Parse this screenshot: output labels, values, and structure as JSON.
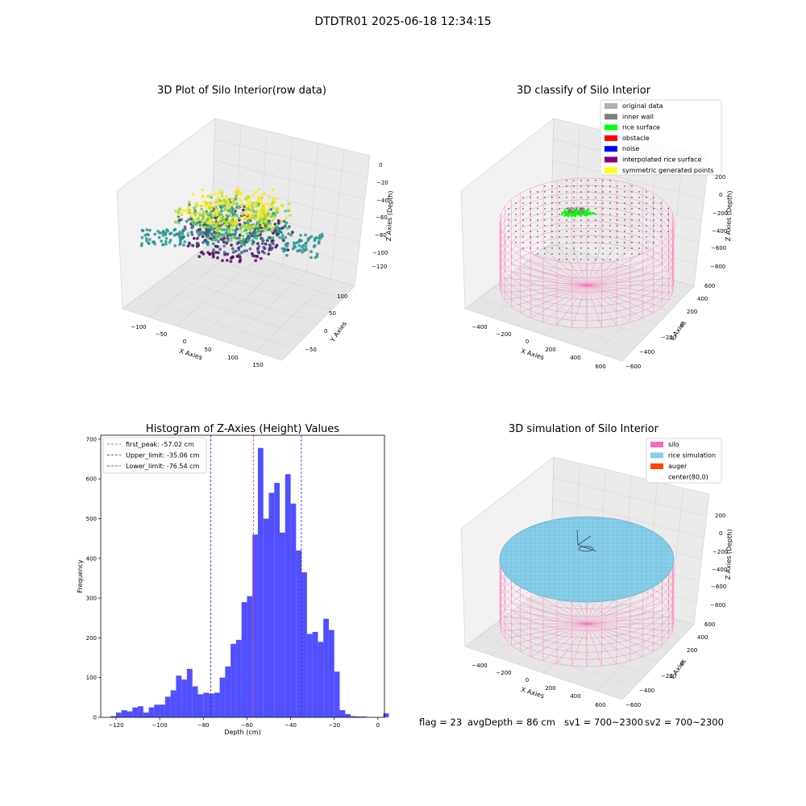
{
  "figure": {
    "suptitle": "DTDTR01 2025-06-18 12:34:15",
    "footer": {
      "flag": "flag = 23",
      "avg_depth": "avgDepth = 86 cm",
      "sv1": "sv1 = 700~2300",
      "sv2": "sv2 = 700~2300"
    }
  },
  "colors": {
    "hist_bar": "#5050ff",
    "peak_line": "#ff3333",
    "limit_line": "#2222dd",
    "silo": "#ff69b4",
    "rice_simulation": "#87ceeb",
    "auger": "#ff4500",
    "rice_surface": "#00ff00",
    "inner_wall": "#808080",
    "original_data": "#b0b0b0",
    "obstacle": "#ff0000",
    "noise": "#0000ff",
    "interpolated": "#800080",
    "symmetric": "#ffff00",
    "viridis": [
      "#440154",
      "#3b528b",
      "#21918c",
      "#5ec962",
      "#bddf26",
      "#fde725"
    ]
  },
  "plot1": {
    "title": "3D Plot of Silo Interior(row data)",
    "xlabel": "X Axies",
    "ylabel": "Y Axies",
    "zlabel": "Z Axies (Depth)",
    "xticks": [
      "−100",
      "−50",
      "0",
      "50",
      "100",
      "150"
    ],
    "yticks": [
      "100",
      "50",
      "0",
      "−50"
    ],
    "zticks": [
      "0",
      "−20",
      "−40",
      "−60",
      "−80",
      "−100",
      "−120"
    ],
    "xlim": [
      -130,
      170
    ],
    "ylim": [
      -80,
      130
    ],
    "zlim": [
      -130,
      5
    ],
    "colormap": "viridis"
  },
  "plot2": {
    "title": "3D classify of Silo Interior",
    "xlabel": "X Axies",
    "ylabel": "Y Axies",
    "zlabel": "Z Axies (Depth)",
    "xticks": [
      "−400",
      "−200",
      "0",
      "200",
      "400",
      "600"
    ],
    "yticks": [
      "600",
      "400",
      "200",
      "0",
      "−200",
      "−400",
      "−600"
    ],
    "zticks": [
      "200",
      "0",
      "−200",
      "−400",
      "−600",
      "−800"
    ],
    "legend": [
      {
        "label": "original data",
        "color": "#b0b0b0"
      },
      {
        "label": "inner wall",
        "color": "#808080"
      },
      {
        "label": "rice surface",
        "color": "#00ff00"
      },
      {
        "label": "obstacle",
        "color": "#ff0000"
      },
      {
        "label": "noise",
        "color": "#0000ff"
      },
      {
        "label": "interpolated rice surface",
        "color": "#800080"
      },
      {
        "label": "symmetric generated points",
        "color": "#ffff00"
      }
    ]
  },
  "plot4": {
    "title": "3D simulation of Silo Interior",
    "xlabel": "X Axies",
    "ylabel": "Y Axies",
    "zlabel": "Z Axies (Depth)",
    "xticks": [
      "−400",
      "−200",
      "0",
      "200",
      "400",
      "600"
    ],
    "yticks": [
      "600",
      "400",
      "200",
      "0",
      "−200",
      "−400",
      "−600"
    ],
    "zticks": [
      "200",
      "0",
      "−200",
      "−400",
      "−600",
      "−800"
    ],
    "legend": [
      {
        "label": "silo",
        "color": "#ff69b4"
      },
      {
        "label": "rice simulation",
        "color": "#87ceeb"
      },
      {
        "label": "auger",
        "color": "#ff4500"
      },
      {
        "label": "center(80,0)",
        "color": ""
      }
    ]
  },
  "chart_data": {
    "type": "bar",
    "title": "Histogram of Z-Axies (Height) Values",
    "xlabel": "Depth (cm)",
    "ylabel": "Frequency",
    "xlim": [
      -127,
      3
    ],
    "ylim": [
      0,
      710
    ],
    "xticks": [
      -120,
      -100,
      -80,
      -60,
      -40,
      -20,
      0
    ],
    "yticks": [
      0,
      100,
      200,
      300,
      400,
      500,
      600,
      700
    ],
    "bin_width": 2.5,
    "bin_start": -122.5,
    "counts": [
      3,
      12,
      18,
      15,
      25,
      28,
      12,
      25,
      32,
      32,
      52,
      68,
      105,
      95,
      122,
      78,
      58,
      62,
      60,
      62,
      100,
      128,
      185,
      195,
      290,
      305,
      460,
      678,
      500,
      565,
      590,
      465,
      612,
      538,
      420,
      365,
      210,
      215,
      190,
      248,
      220,
      115,
      18,
      8,
      3,
      2,
      2,
      0,
      0,
      0,
      10
    ],
    "lines": [
      {
        "label": "first_peak: -57.02 cm",
        "x": -57.02,
        "color": "#ff3333"
      },
      {
        "label": "Upper_limit: -35.06 cm",
        "x": -35.06,
        "color": "#2222dd"
      },
      {
        "label": "Lower_limit: -76.54 cm",
        "x": -76.54,
        "color": "#2222dd"
      }
    ],
    "legend_position": "top-left"
  }
}
